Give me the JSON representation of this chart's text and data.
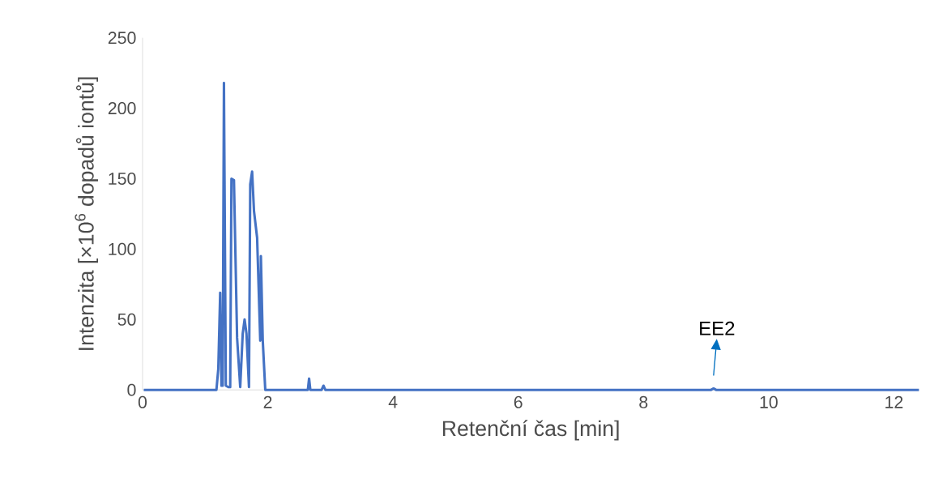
{
  "chart_data": {
    "type": "line",
    "xlabel": "Retenční čas [min]",
    "ylabel": "Intenzita [×10$^{6}$ dopadů iontů]",
    "x": [
      0.02,
      1.18,
      1.21,
      1.24,
      1.26,
      1.28,
      1.3,
      1.33,
      1.37,
      1.4,
      1.42,
      1.46,
      1.51,
      1.56,
      1.6,
      1.63,
      1.66,
      1.7,
      1.72,
      1.75,
      1.78,
      1.83,
      1.88,
      1.89,
      1.92,
      1.96,
      2.6,
      2.64,
      2.66,
      2.68,
      2.7,
      2.86,
      2.89,
      2.92,
      9.08,
      9.12,
      9.16,
      12.4
    ],
    "series": [
      {
        "color": "#4472c4",
        "values": [
          0,
          0,
          15,
          69,
          3,
          3,
          218,
          3,
          2,
          2,
          150,
          149,
          37,
          2,
          40,
          50,
          40,
          2,
          146,
          155,
          127,
          108,
          35,
          95,
          35,
          0,
          0,
          0,
          8,
          0,
          0,
          0,
          3,
          0,
          0,
          1,
          0,
          0
        ]
      }
    ],
    "xlim": [
      0,
      12.4
    ],
    "ylim": [
      0,
      250
    ],
    "xticks": [
      0,
      2,
      4,
      6,
      8,
      10,
      12
    ],
    "yticks": [
      0,
      50,
      100,
      150,
      200,
      250
    ],
    "grid": false,
    "marker": "none",
    "line_style": "solid",
    "annotations": [
      {
        "text": "EE2",
        "x": 9.12,
        "y": 1
      }
    ]
  }
}
